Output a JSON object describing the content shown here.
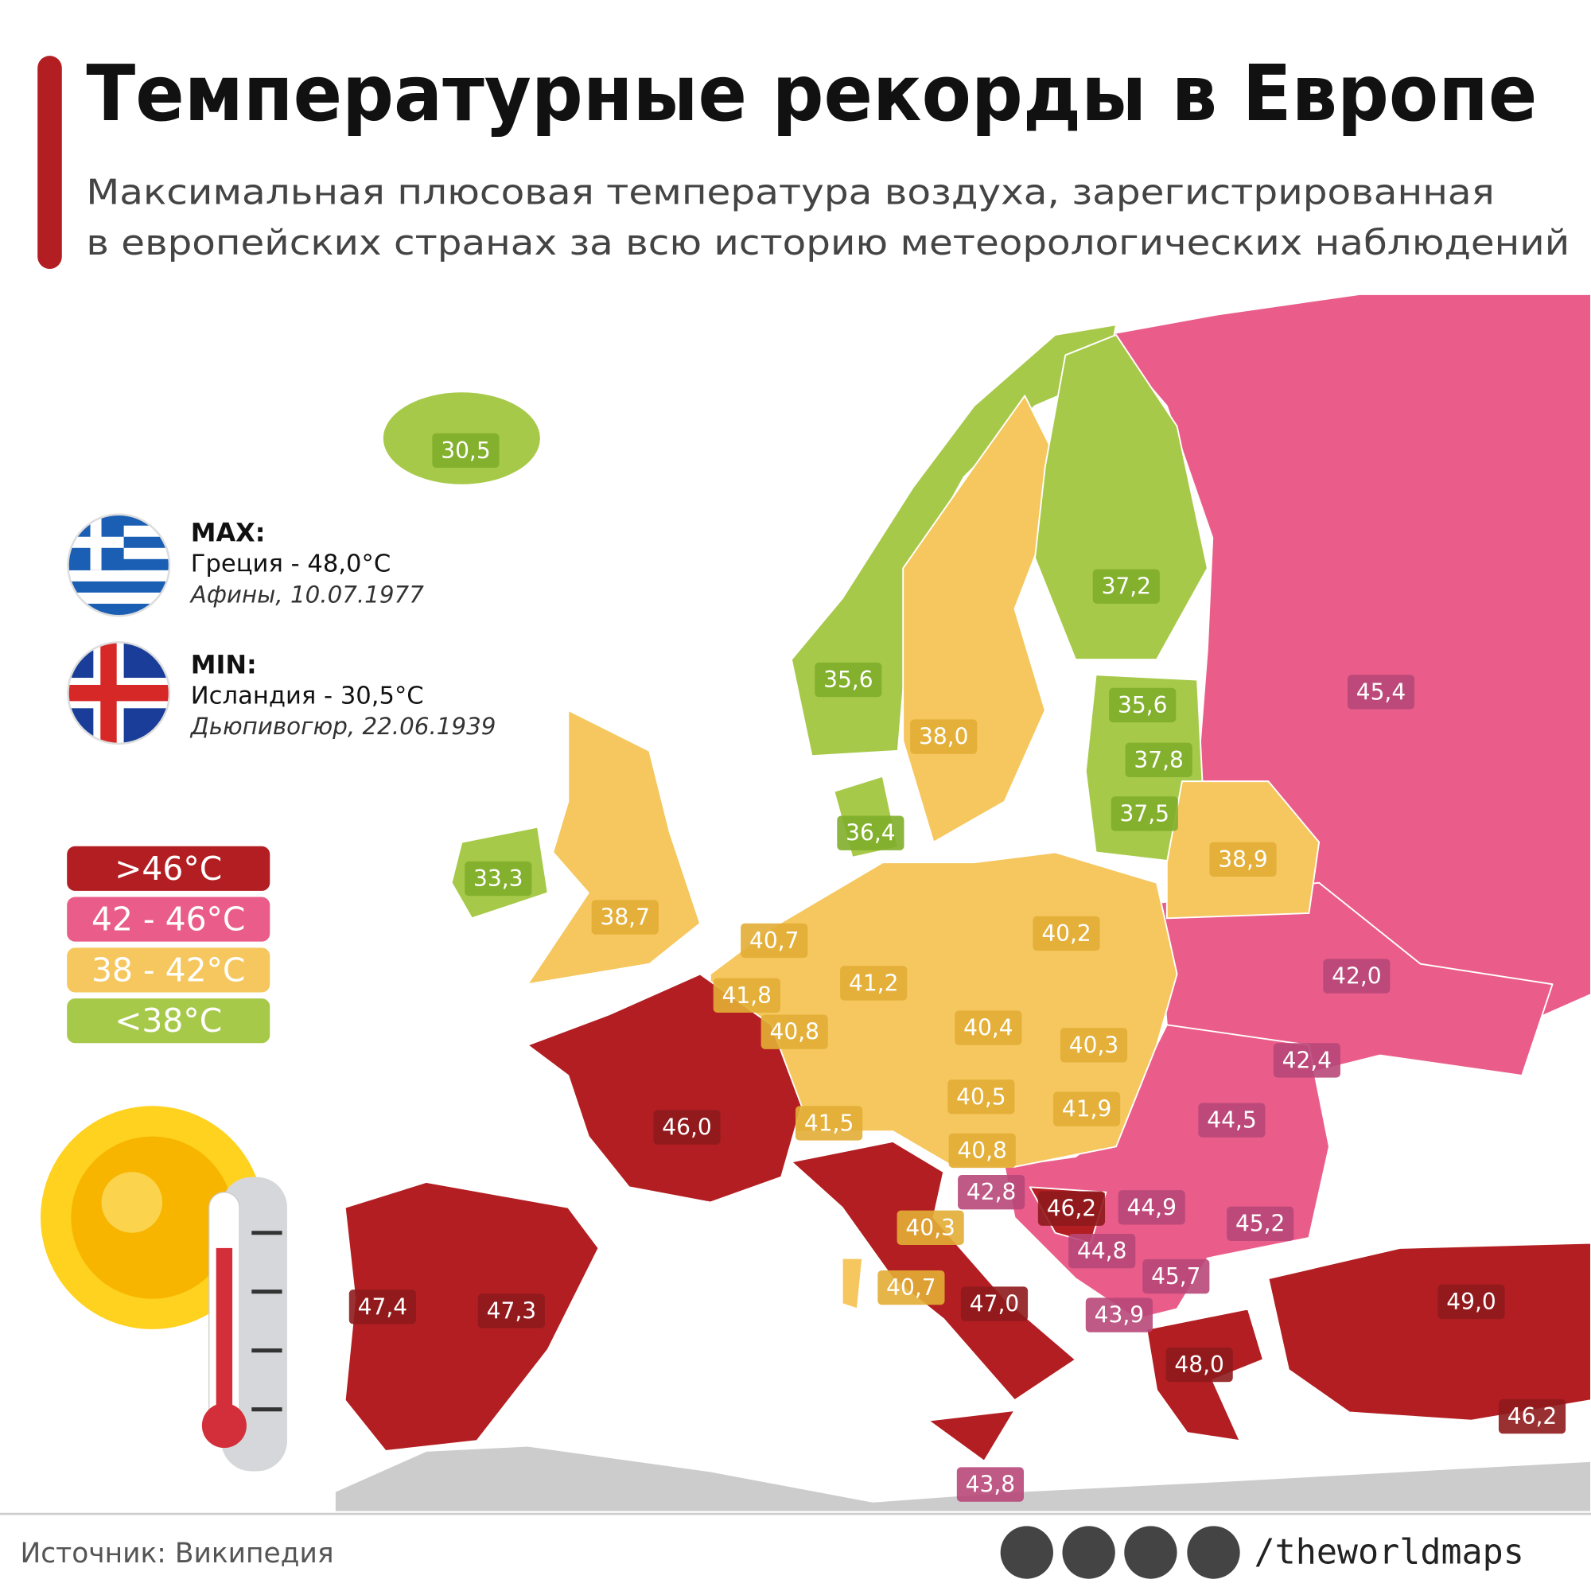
{
  "header": {
    "title": "Температурные рекорды в Европе",
    "subtitle_lines": [
      "Максимальная плюсовая температура воздуха, зарегистрированная",
      "в европейских странах за всю историю метеорологических наблюдений"
    ]
  },
  "records": {
    "max": {
      "heading": "MAX:",
      "country": "Греция - 48,0°C",
      "place": "Афины, 10.07.1977"
    },
    "min": {
      "heading": "MIN:",
      "country": "Исландия - 30,5°C",
      "place": "Дьюпивогюр, 22.06.1939"
    }
  },
  "legend": [
    {
      "label": ">46°C",
      "color": "#b31e22"
    },
    {
      "label": "42 - 46°C",
      "color": "#ea5d8a"
    },
    {
      "label": "38 - 42°C",
      "color": "#f5c75e"
    },
    {
      "label": "<38°C",
      "color": "#a7c94a"
    }
  ],
  "map_labels": [
    {
      "text": "30,5",
      "color": "#7fae2a"
    },
    {
      "text": "37,2",
      "color": "#7fae2a"
    },
    {
      "text": "35,6",
      "color": "#7fae2a"
    },
    {
      "text": "45,4",
      "color": "#b84778"
    },
    {
      "text": "35,6",
      "color": "#7fae2a"
    },
    {
      "text": "38,0",
      "color": "#e2ad35"
    },
    {
      "text": "37,8",
      "color": "#7fae2a"
    },
    {
      "text": "37,5",
      "color": "#7fae2a"
    },
    {
      "text": "36,4",
      "color": "#7fae2a"
    },
    {
      "text": "38,9",
      "color": "#e2ad35"
    },
    {
      "text": "33,3",
      "color": "#7fae2a"
    },
    {
      "text": "38,7",
      "color": "#e2ad35"
    },
    {
      "text": "40,7",
      "color": "#e2ad35"
    },
    {
      "text": "40,2",
      "color": "#e2ad35"
    },
    {
      "text": "42,0",
      "color": "#b84778"
    },
    {
      "text": "41,2",
      "color": "#e2ad35"
    },
    {
      "text": "41,8",
      "color": "#e2ad35"
    },
    {
      "text": "40,8",
      "color": "#e2ad35"
    },
    {
      "text": "40,4",
      "color": "#e2ad35"
    },
    {
      "text": "40,3",
      "color": "#e2ad35"
    },
    {
      "text": "42,4",
      "color": "#b84778"
    },
    {
      "text": "40,5",
      "color": "#e2ad35"
    },
    {
      "text": "41,9",
      "color": "#e2ad35"
    },
    {
      "text": "44,5",
      "color": "#b84778"
    },
    {
      "text": "41,5",
      "color": "#e2ad35"
    },
    {
      "text": "46,0",
      "color": "#8e1a1c"
    },
    {
      "text": "40,8",
      "color": "#e2ad35"
    },
    {
      "text": "42,8",
      "color": "#b84778"
    },
    {
      "text": "46,2",
      "color": "#8e1a1c"
    },
    {
      "text": "44,9",
      "color": "#b84778"
    },
    {
      "text": "45,2",
      "color": "#b84778"
    },
    {
      "text": "40,3",
      "color": "#e2ad35"
    },
    {
      "text": "44,8",
      "color": "#b84778"
    },
    {
      "text": "45,7",
      "color": "#b84778"
    },
    {
      "text": "40,7",
      "color": "#e2ad35"
    },
    {
      "text": "47,0",
      "color": "#8e1a1c"
    },
    {
      "text": "49,0",
      "color": "#8e1a1c"
    },
    {
      "text": "47,4",
      "color": "#8e1a1c"
    },
    {
      "text": "47,3",
      "color": "#8e1a1c"
    },
    {
      "text": "43,9",
      "color": "#b84778"
    },
    {
      "text": "48,0",
      "color": "#8e1a1c"
    },
    {
      "text": "46,2",
      "color": "#8e1a1c"
    },
    {
      "text": "43,8",
      "color": "#b84778"
    }
  ],
  "footer": {
    "source": "Источник: Википедия",
    "handle": "/theworldmaps"
  }
}
